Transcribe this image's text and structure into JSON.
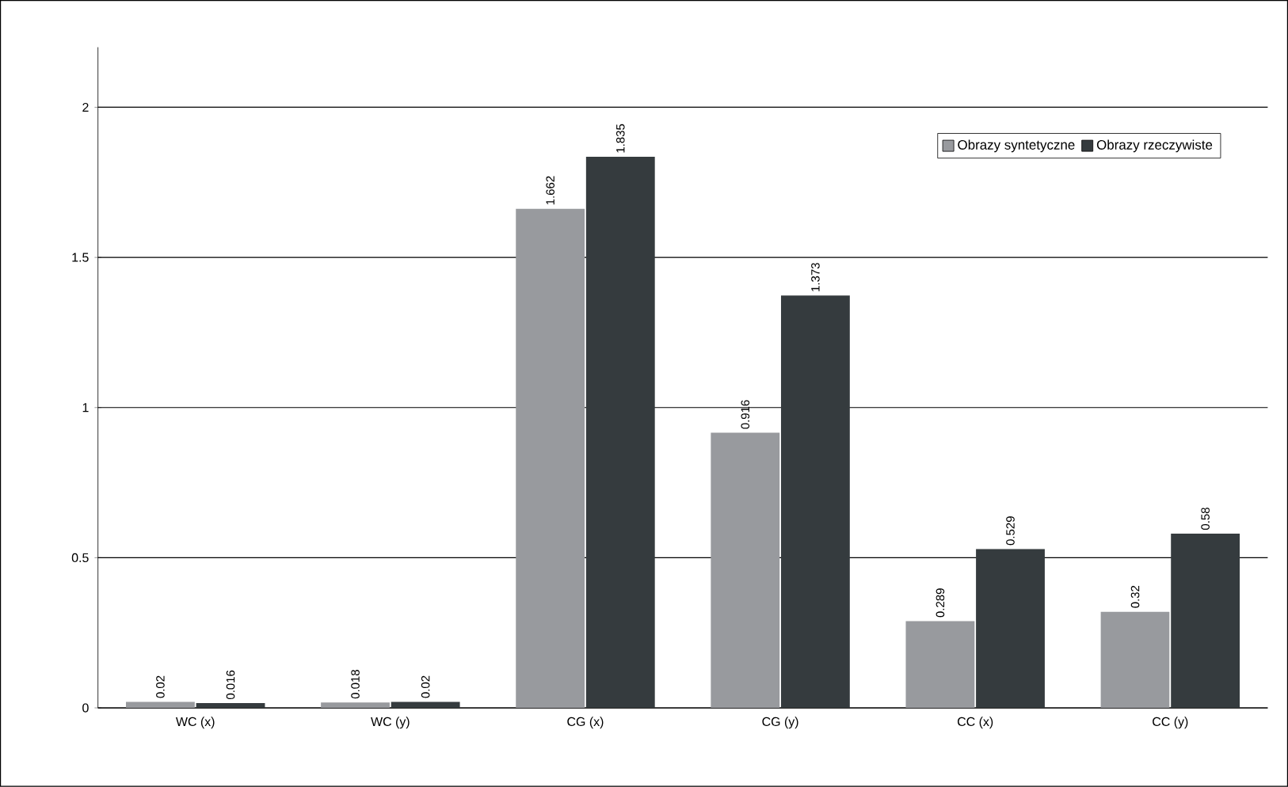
{
  "chart_data": {
    "type": "bar",
    "categories": [
      "WC (x)",
      "WC (y)",
      "CG (x)",
      "CG (y)",
      "CC (x)",
      "CC (y)"
    ],
    "series": [
      {
        "name": "Obrazy syntetyczne",
        "color": "#989a9e",
        "values": [
          0.02,
          0.018,
          1.662,
          0.916,
          0.289,
          0.32
        ]
      },
      {
        "name": "Obrazy rzeczywiste",
        "color": "#353b3e",
        "values": [
          0.016,
          0.02,
          1.835,
          1.373,
          0.529,
          0.58
        ]
      }
    ],
    "ylim": [
      0,
      2.2
    ],
    "yticks": [
      0,
      0.5,
      1,
      1.5,
      2
    ],
    "grid": "y",
    "legend": "top right",
    "data_labels": true
  }
}
